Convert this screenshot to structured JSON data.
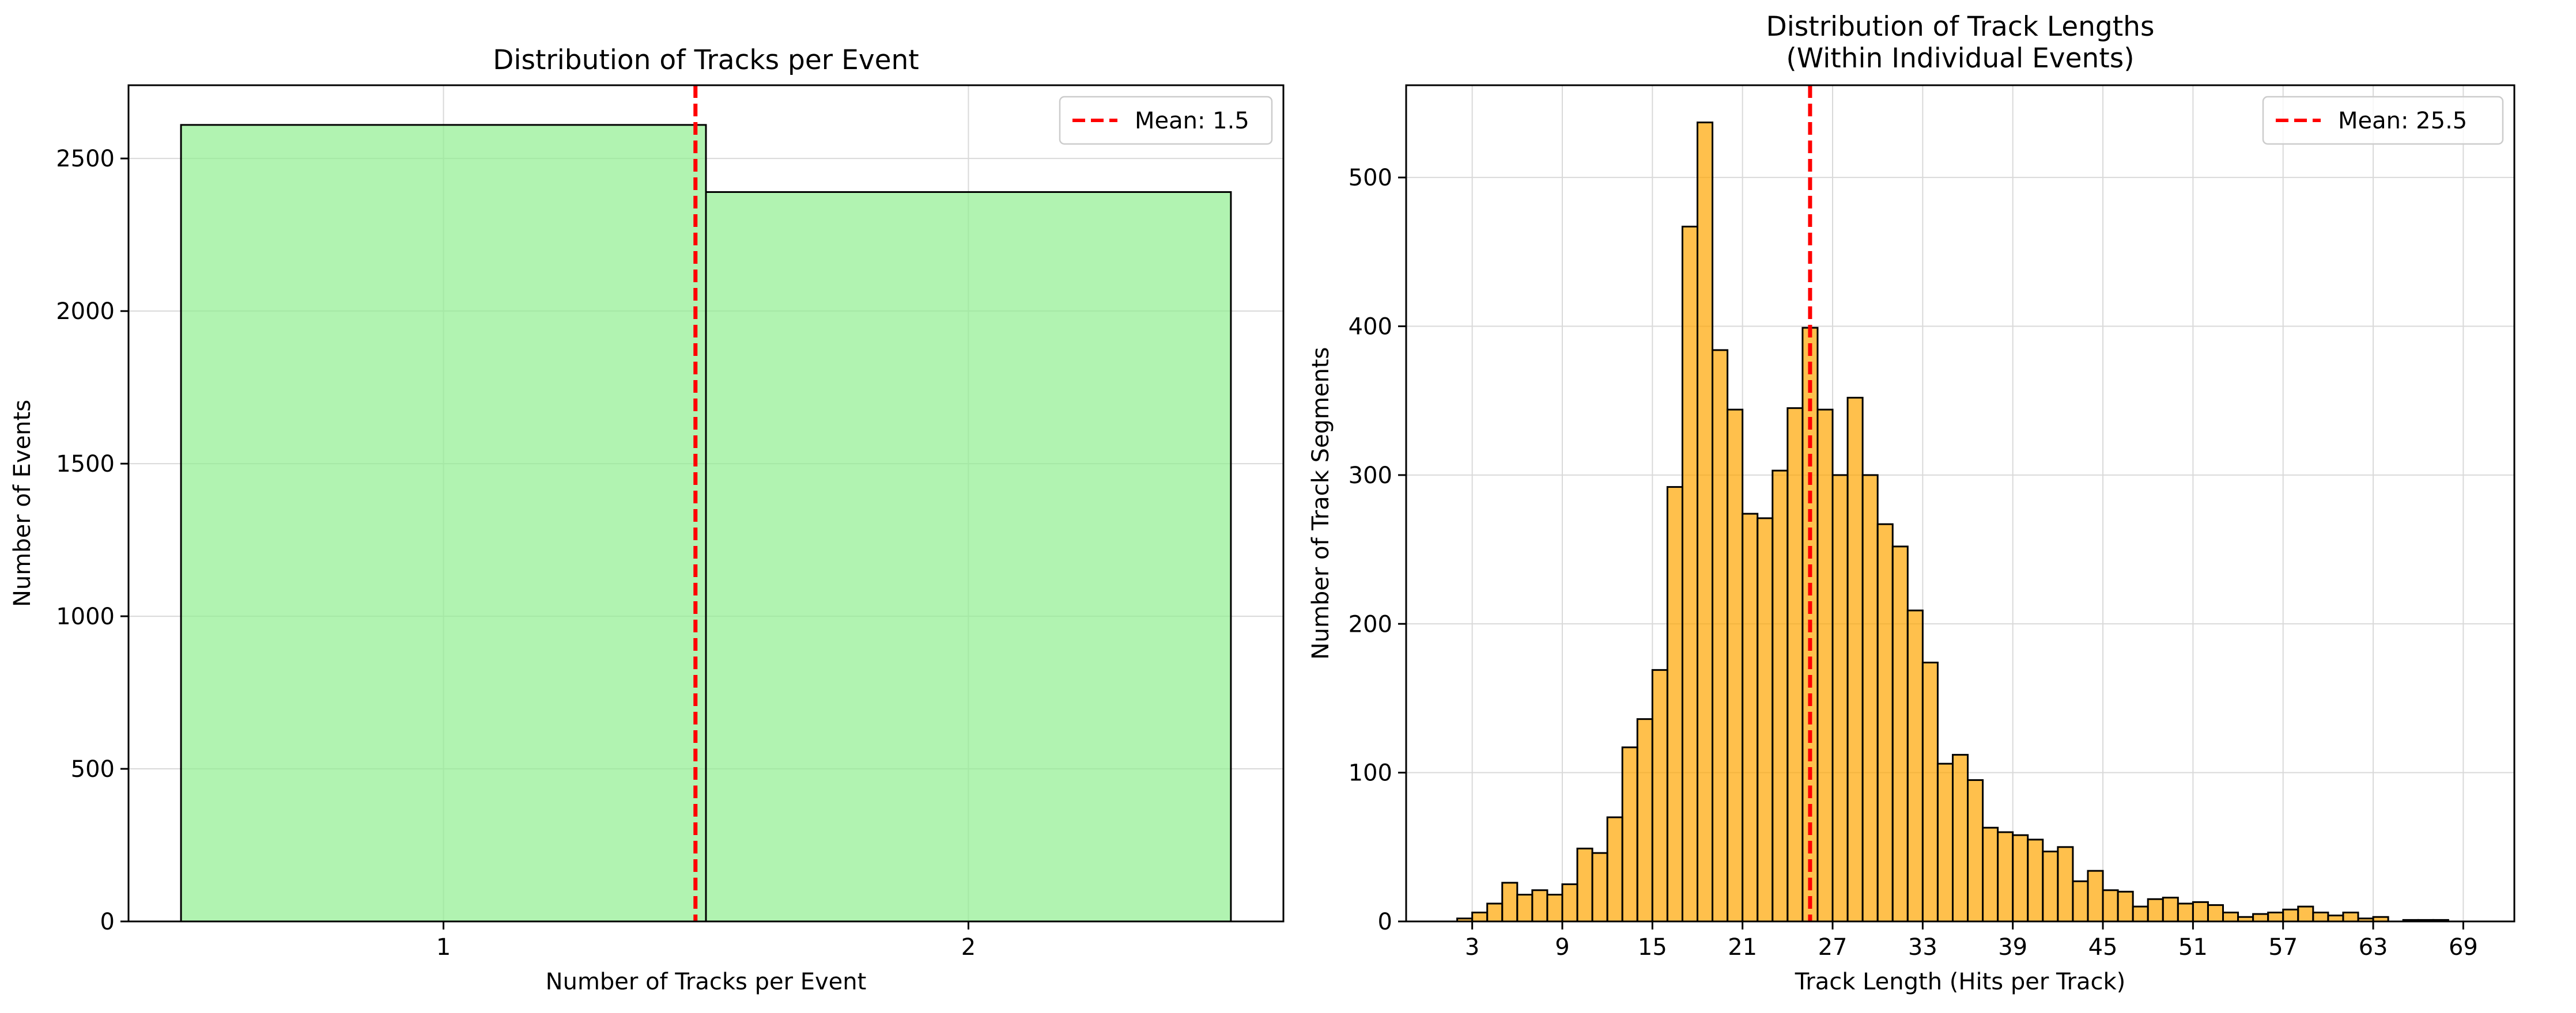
{
  "colors": {
    "left_bar_fill": "#90ee90",
    "right_bar_fill": "#ffa500",
    "bar_edge": "#000000",
    "mean_line": "#ff0000",
    "grid": "#d9d9d9"
  },
  "chart_data": [
    {
      "type": "bar",
      "title": "Distribution of Tracks per Event",
      "xlabel": "Number of Tracks per Event",
      "ylabel": "Number of Events",
      "categories": [
        "1",
        "2"
      ],
      "values": [
        2610,
        2390
      ],
      "bins": [
        [
          0.5,
          1.5
        ],
        [
          1.5,
          2.5
        ]
      ],
      "xlim": [
        0.4,
        2.6
      ],
      "ylim": [
        0,
        2740
      ],
      "xticks": [
        1,
        2
      ],
      "yticks": [
        0,
        500,
        1000,
        1500,
        2000,
        2500
      ],
      "grid": true,
      "mean": 1.48,
      "legend": {
        "label": "Mean: 1.5",
        "placement": "top-right"
      }
    },
    {
      "type": "bar",
      "title": "Distribution of Track Lengths\n(Within Individual Events)",
      "xlabel": "Track Length (Hits per Track)",
      "ylabel": "Number of Track Segments",
      "bin_start": 2,
      "bin_width": 1,
      "values": [
        2,
        6,
        12,
        26,
        18,
        21,
        18,
        25,
        49,
        46,
        70,
        117,
        136,
        169,
        292,
        467,
        537,
        384,
        344,
        274,
        271,
        303,
        345,
        399,
        344,
        300,
        352,
        300,
        267,
        252,
        209,
        174,
        106,
        112,
        95,
        63,
        60,
        58,
        55,
        47,
        50,
        27,
        34,
        21,
        20,
        10,
        15,
        16,
        12,
        13,
        11,
        6,
        3,
        5,
        6,
        8,
        10,
        6,
        4,
        6,
        2,
        3,
        0,
        1,
        1,
        1,
        0
      ],
      "xlim": [
        -1.4,
        72.4
      ],
      "ylim": [
        0,
        562
      ],
      "xticks": [
        3,
        9,
        15,
        21,
        27,
        33,
        39,
        45,
        51,
        57,
        63,
        69
      ],
      "yticks": [
        0,
        100,
        200,
        300,
        400,
        500
      ],
      "grid": true,
      "mean": 25.5,
      "legend": {
        "label": "Mean: 25.5",
        "placement": "top-right"
      }
    }
  ]
}
